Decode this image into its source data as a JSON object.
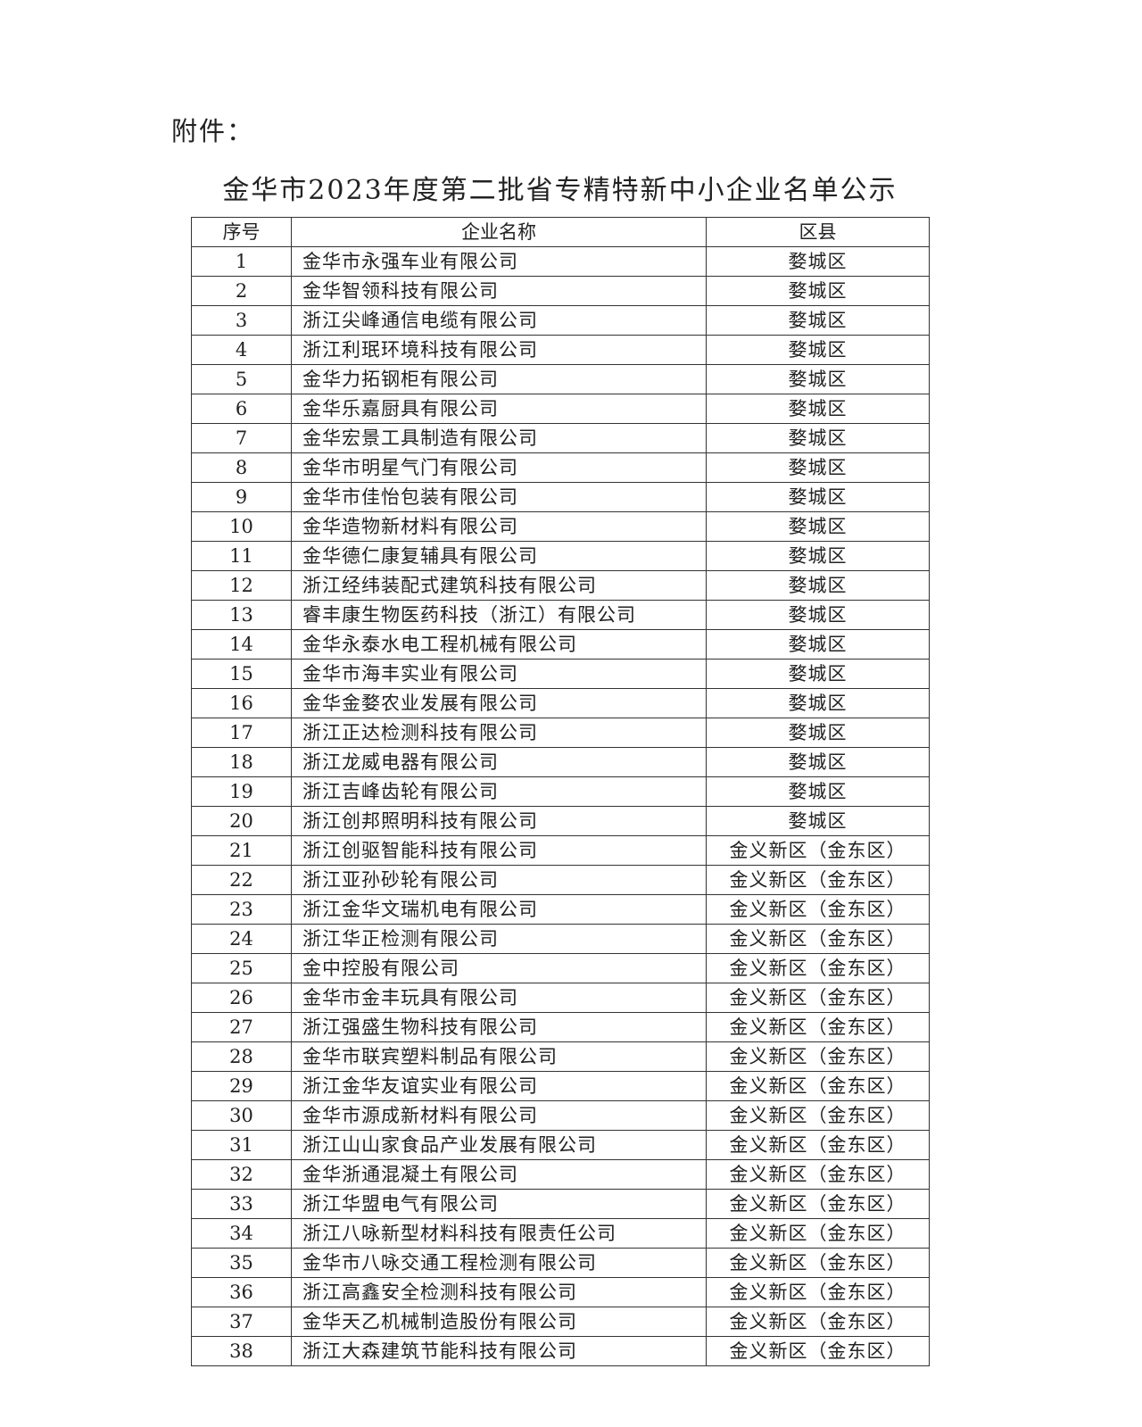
{
  "attachment_label": "附件：",
  "title": "金华市2023年度第二批省专精特新中小企业名单公示",
  "table": {
    "headers": [
      "序号",
      "企业名称",
      "区县"
    ],
    "rows": [
      [
        "1",
        "金华市永强车业有限公司",
        "婺城区"
      ],
      [
        "2",
        "金华智领科技有限公司",
        "婺城区"
      ],
      [
        "3",
        "浙江尖峰通信电缆有限公司",
        "婺城区"
      ],
      [
        "4",
        "浙江利珉环境科技有限公司",
        "婺城区"
      ],
      [
        "5",
        "金华力拓钢柜有限公司",
        "婺城区"
      ],
      [
        "6",
        "金华乐嘉厨具有限公司",
        "婺城区"
      ],
      [
        "7",
        "金华宏景工具制造有限公司",
        "婺城区"
      ],
      [
        "8",
        "金华市明星气门有限公司",
        "婺城区"
      ],
      [
        "9",
        "金华市佳怡包装有限公司",
        "婺城区"
      ],
      [
        "10",
        "金华造物新材料有限公司",
        "婺城区"
      ],
      [
        "11",
        "金华德仁康复辅具有限公司",
        "婺城区"
      ],
      [
        "12",
        "浙江经纬装配式建筑科技有限公司",
        "婺城区"
      ],
      [
        "13",
        "睿丰康生物医药科技（浙江）有限公司",
        "婺城区"
      ],
      [
        "14",
        "金华永泰水电工程机械有限公司",
        "婺城区"
      ],
      [
        "15",
        "金华市海丰实业有限公司",
        "婺城区"
      ],
      [
        "16",
        "金华金婺农业发展有限公司",
        "婺城区"
      ],
      [
        "17",
        "浙江正达检测科技有限公司",
        "婺城区"
      ],
      [
        "18",
        "浙江龙威电器有限公司",
        "婺城区"
      ],
      [
        "19",
        "浙江吉峰齿轮有限公司",
        "婺城区"
      ],
      [
        "20",
        "浙江创邦照明科技有限公司",
        "婺城区"
      ],
      [
        "21",
        "浙江创驱智能科技有限公司",
        "金义新区（金东区）"
      ],
      [
        "22",
        "浙江亚孙砂轮有限公司",
        "金义新区（金东区）"
      ],
      [
        "23",
        "浙江金华文瑞机电有限公司",
        "金义新区（金东区）"
      ],
      [
        "24",
        "浙江华正检测有限公司",
        "金义新区（金东区）"
      ],
      [
        "25",
        "金中控股有限公司",
        "金义新区（金东区）"
      ],
      [
        "26",
        "金华市金丰玩具有限公司",
        "金义新区（金东区）"
      ],
      [
        "27",
        "浙江强盛生物科技有限公司",
        "金义新区（金东区）"
      ],
      [
        "28",
        "金华市联宾塑料制品有限公司",
        "金义新区（金东区）"
      ],
      [
        "29",
        "浙江金华友谊实业有限公司",
        "金义新区（金东区）"
      ],
      [
        "30",
        "金华市源成新材料有限公司",
        "金义新区（金东区）"
      ],
      [
        "31",
        "浙江山山家食品产业发展有限公司",
        "金义新区（金东区）"
      ],
      [
        "32",
        "金华浙通混凝土有限公司",
        "金义新区（金东区）"
      ],
      [
        "33",
        "浙江华盟电气有限公司",
        "金义新区（金东区）"
      ],
      [
        "34",
        "浙江八咏新型材料科技有限责任公司",
        "金义新区（金东区）"
      ],
      [
        "35",
        "金华市八咏交通工程检测有限公司",
        "金义新区（金东区）"
      ],
      [
        "36",
        "浙江高鑫安全检测科技有限公司",
        "金义新区（金东区）"
      ],
      [
        "37",
        "金华天乙机械制造股份有限公司",
        "金义新区（金东区）"
      ],
      [
        "38",
        "浙江大森建筑节能科技有限公司",
        "金义新区（金东区）"
      ]
    ]
  }
}
